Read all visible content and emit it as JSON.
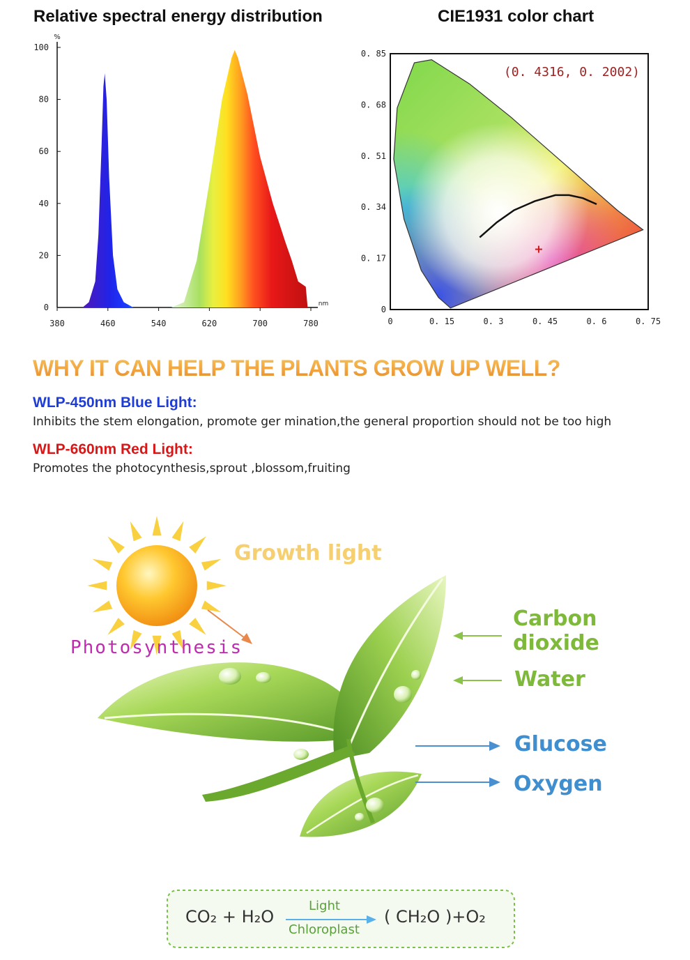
{
  "chart_data": [
    {
      "type": "area",
      "title": "Relative spectral energy distribution",
      "ylabel": "%",
      "xunit": "nm",
      "xlim": [
        380,
        780
      ],
      "ylim": [
        0,
        100
      ],
      "xticks": [
        "380",
        "460",
        "540",
        "620",
        "700",
        "780"
      ],
      "yticks": [
        "0",
        "20",
        "40",
        "60",
        "80",
        "100"
      ],
      "x": [
        420,
        430,
        440,
        445,
        450,
        453,
        455,
        458,
        462,
        468,
        475,
        485,
        500,
        520,
        560,
        580,
        600,
        620,
        640,
        655,
        660,
        665,
        680,
        700,
        720,
        740,
        750,
        760,
        772,
        775
      ],
      "values": [
        0,
        2,
        10,
        28,
        62,
        85,
        90,
        80,
        50,
        20,
        7,
        2,
        0,
        0,
        0,
        2,
        18,
        48,
        80,
        96,
        99,
        96,
        82,
        58,
        40,
        25,
        18,
        10,
        8,
        0
      ],
      "colors": {
        "blue_peak": "#1a2ee0",
        "red_peak": "#e01818",
        "yellow": "#f6e02a"
      }
    },
    {
      "type": "scatter",
      "title": "CIE1931 color chart",
      "xlim": [
        0,
        0.75
      ],
      "ylim": [
        0,
        0.85
      ],
      "xticks": [
        "0",
        "0. 15",
        "0. 3",
        "0. 45",
        "0. 6",
        "0. 75"
      ],
      "yticks": [
        "0",
        "0. 17",
        "0. 34",
        "0. 51",
        "0. 68",
        "0. 85"
      ],
      "point": {
        "x": 0.4316,
        "y": 0.2002,
        "label": "(0. 4316,  0. 2002)"
      },
      "locus": [
        [
          0.175,
          0.005
        ],
        [
          0.14,
          0.04
        ],
        [
          0.09,
          0.13
        ],
        [
          0.04,
          0.3
        ],
        [
          0.01,
          0.5
        ],
        [
          0.02,
          0.67
        ],
        [
          0.07,
          0.82
        ],
        [
          0.12,
          0.83
        ],
        [
          0.23,
          0.75
        ],
        [
          0.35,
          0.64
        ],
        [
          0.46,
          0.53
        ],
        [
          0.57,
          0.42
        ],
        [
          0.66,
          0.33
        ],
        [
          0.735,
          0.265
        ]
      ],
      "planckian": [
        [
          0.26,
          0.24
        ],
        [
          0.31,
          0.29
        ],
        [
          0.36,
          0.33
        ],
        [
          0.42,
          0.36
        ],
        [
          0.48,
          0.38
        ],
        [
          0.52,
          0.38
        ],
        [
          0.56,
          0.37
        ],
        [
          0.6,
          0.35
        ]
      ]
    }
  ],
  "headline": "WHY IT CAN HELP THE PLANTS GROW UP WELL?",
  "blue_light": {
    "title": "WLP-450nm Blue Light:",
    "desc": "Inhibits the stem elongation, promote ger mination,the general proportion should not be too high"
  },
  "red_light": {
    "title": "WLP-660nm Red Light:",
    "desc": "Promotes the photocynthesis,sprout ,blossom,fruiting"
  },
  "diagram": {
    "growth_light": "Growth light",
    "photosynthesis": "Photosynthesis",
    "inputs": [
      "Carbon",
      "dioxide",
      "Water"
    ],
    "outputs": [
      "Glucose",
      "Oxygen"
    ],
    "formula": {
      "left": "CO₂ + H₂O",
      "above_arrow": "Light",
      "below_arrow": "Chloroplast",
      "right": "( CH₂O )+O₂"
    }
  },
  "colors": {
    "headline": "#f2a440",
    "blue_title": "#1e3dd6",
    "red_title": "#d81818",
    "label_green": "#7fb93c",
    "label_blue": "#3f8fd0",
    "photosynthesis": "#c02ab0"
  }
}
